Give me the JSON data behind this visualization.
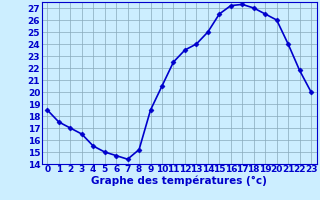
{
  "x": [
    0,
    1,
    2,
    3,
    4,
    5,
    6,
    7,
    8,
    9,
    10,
    11,
    12,
    13,
    14,
    15,
    16,
    17,
    18,
    19,
    20,
    21,
    22,
    23
  ],
  "y": [
    18.5,
    17.5,
    17.0,
    16.5,
    15.5,
    15.0,
    14.7,
    14.4,
    15.2,
    18.5,
    20.5,
    22.5,
    23.5,
    24.0,
    25.0,
    26.5,
    27.2,
    27.3,
    27.0,
    26.5,
    26.0,
    24.0,
    21.8,
    20.0
  ],
  "xlabel": "Graphe des températures (°c)",
  "ylim": [
    14,
    27.5
  ],
  "xlim": [
    -0.5,
    23.5
  ],
  "yticks": [
    14,
    15,
    16,
    17,
    18,
    19,
    20,
    21,
    22,
    23,
    24,
    25,
    26,
    27
  ],
  "xticks": [
    0,
    1,
    2,
    3,
    4,
    5,
    6,
    7,
    8,
    9,
    10,
    11,
    12,
    13,
    14,
    15,
    16,
    17,
    18,
    19,
    20,
    21,
    22,
    23
  ],
  "line_color": "#0000cc",
  "marker": "D",
  "marker_size": 2.5,
  "bg_color": "#cceeff",
  "grid_color": "#88aabb",
  "axis_color": "#0000cc",
  "tick_color": "#0000cc",
  "label_color": "#0000cc",
  "xlabel_fontsize": 7.5,
  "tick_fontsize": 6.5,
  "linewidth": 1.2
}
